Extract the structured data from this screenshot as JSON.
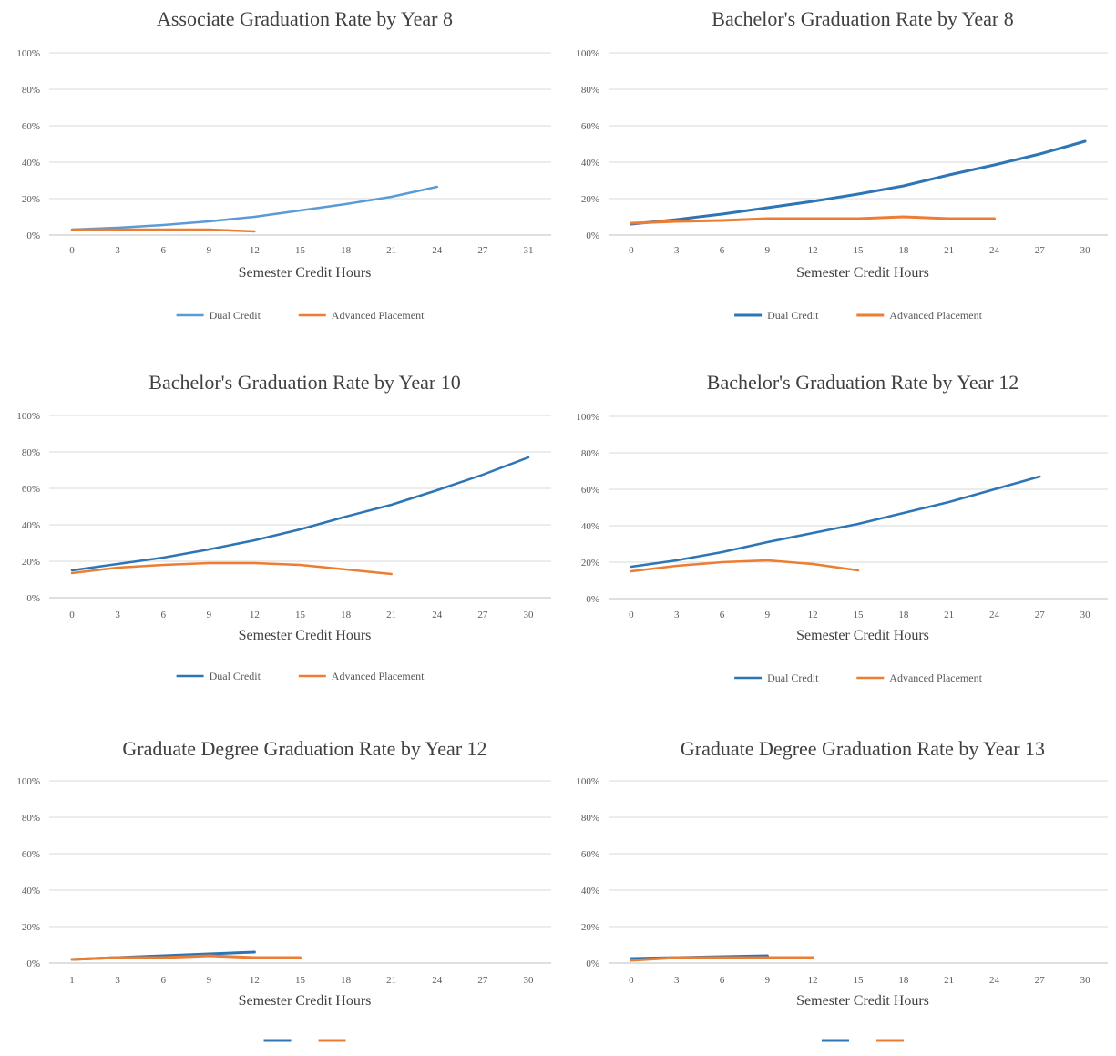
{
  "chart_data": [
    {
      "type": "line",
      "title": "Associate Graduation Rate by Year 8",
      "xlabel": "Semester Credit Hours",
      "ylabel": "",
      "x_ticks": [
        "0",
        "3",
        "6",
        "9",
        "12",
        "15",
        "18",
        "21",
        "24",
        "27",
        "31"
      ],
      "y_ticks": [
        "0%",
        "20%",
        "40%",
        "60%",
        "80%",
        "100%"
      ],
      "ylim": [
        0,
        100
      ],
      "legend": "bottom",
      "grid": true,
      "series": [
        {
          "name": "Dual Credit",
          "color": "#5b9bd5",
          "width": 2.5,
          "x": [
            0,
            3,
            6,
            9,
            12,
            15,
            18,
            21,
            24
          ],
          "y": [
            3,
            4,
            5.5,
            7.5,
            10,
            13.5,
            17,
            21,
            26.5
          ]
        },
        {
          "name": "Advanced Placement",
          "color": "#ed7d31",
          "width": 2.5,
          "x": [
            0,
            3,
            6,
            9,
            12
          ],
          "y": [
            3,
            3,
            3,
            3,
            2
          ]
        }
      ]
    },
    {
      "type": "line",
      "title": "Bachelor's Graduation Rate by Year 8",
      "xlabel": "Semester Credit Hours",
      "ylabel": "",
      "x_ticks": [
        "0",
        "3",
        "6",
        "9",
        "12",
        "15",
        "18",
        "21",
        "24",
        "27",
        "30"
      ],
      "y_ticks": [
        "0%",
        "20%",
        "40%",
        "60%",
        "80%",
        "100%"
      ],
      "ylim": [
        0,
        100
      ],
      "legend": "bottom",
      "grid": true,
      "series": [
        {
          "name": "Dual Credit",
          "color": "#2e75b6",
          "width": 3,
          "x": [
            0,
            3,
            6,
            9,
            12,
            15,
            18,
            21,
            24,
            27,
            30
          ],
          "y": [
            6,
            8.5,
            11.5,
            15,
            18.5,
            22.5,
            27,
            33,
            38.5,
            44.5,
            51.5
          ]
        },
        {
          "name": "Advanced Placement",
          "color": "#ed7d31",
          "width": 3,
          "x": [
            0,
            3,
            6,
            9,
            12,
            15,
            18,
            21,
            24
          ],
          "y": [
            6.5,
            7.5,
            8,
            9,
            9,
            9,
            10,
            9,
            9
          ]
        }
      ]
    },
    {
      "type": "line",
      "title": "Bachelor's Graduation Rate by Year 10",
      "xlabel": "Semester Credit Hours",
      "ylabel": "",
      "x_ticks": [
        "0",
        "3",
        "6",
        "9",
        "12",
        "15",
        "18",
        "21",
        "24",
        "27",
        "30"
      ],
      "y_ticks": [
        "0%",
        "20%",
        "40%",
        "60%",
        "80%",
        "100%"
      ],
      "ylim": [
        0,
        100
      ],
      "legend": "bottom",
      "grid": true,
      "series": [
        {
          "name": "Dual Credit",
          "color": "#2e75b6",
          "width": 2.5,
          "x": [
            0,
            3,
            6,
            9,
            12,
            15,
            18,
            21,
            24,
            27,
            30
          ],
          "y": [
            15,
            18.5,
            22,
            26.5,
            31.5,
            37.5,
            44.5,
            51,
            59,
            67.5,
            77
          ]
        },
        {
          "name": "Advanced Placement",
          "color": "#ed7d31",
          "width": 2.5,
          "x": [
            0,
            3,
            6,
            9,
            12,
            15,
            18,
            21
          ],
          "y": [
            13.5,
            16.5,
            18,
            19,
            19,
            18,
            15.5,
            13
          ]
        }
      ]
    },
    {
      "type": "line",
      "title": "Bachelor's Graduation Rate by Year 12",
      "xlabel": "Semester Credit Hours",
      "ylabel": "",
      "x_ticks": [
        "0",
        "3",
        "6",
        "9",
        "12",
        "15",
        "18",
        "21",
        "24",
        "27",
        "30"
      ],
      "y_ticks": [
        "0%",
        "20%",
        "40%",
        "60%",
        "80%",
        "100%"
      ],
      "ylim": [
        0,
        100
      ],
      "legend": "bottom",
      "grid": true,
      "series": [
        {
          "name": "Dual Credit",
          "color": "#2e75b6",
          "width": 2.5,
          "x": [
            0,
            3,
            6,
            9,
            12,
            15,
            18,
            21,
            24,
            27
          ],
          "y": [
            17.5,
            21,
            25.5,
            31,
            36,
            41,
            47,
            53,
            60,
            67
          ]
        },
        {
          "name": "Advanced Placement",
          "color": "#ed7d31",
          "width": 2.5,
          "x": [
            0,
            3,
            6,
            9,
            12,
            15
          ],
          "y": [
            15,
            18,
            20,
            21,
            19,
            15.5
          ]
        }
      ]
    },
    {
      "type": "line",
      "title": "Graduate Degree Graduation Rate by Year 12",
      "xlabel": "Semester Credit Hours",
      "ylabel": "",
      "x_ticks": [
        "1",
        "3",
        "6",
        "9",
        "12",
        "15",
        "18",
        "21",
        "24",
        "27",
        "30"
      ],
      "y_ticks": [
        "0%",
        "20%",
        "40%",
        "60%",
        "80%",
        "100%"
      ],
      "ylim": [
        0,
        100
      ],
      "legend": "bottom",
      "grid": true,
      "series": [
        {
          "name": "",
          "color": "#2e75b6",
          "width": 3,
          "x": [
            0,
            3,
            6,
            9,
            12
          ],
          "y": [
            2,
            3,
            4,
            5,
            6
          ]
        },
        {
          "name": "",
          "color": "#ed7d31",
          "width": 3,
          "x": [
            0,
            3,
            6,
            9,
            12,
            15
          ],
          "y": [
            2,
            3,
            3,
            4,
            3,
            3
          ]
        }
      ]
    },
    {
      "type": "line",
      "title": "Graduate Degree Graduation Rate by Year 13",
      "xlabel": "Semester Credit Hours",
      "ylabel": "",
      "x_ticks": [
        "0",
        "3",
        "6",
        "9",
        "12",
        "15",
        "18",
        "21",
        "24",
        "27",
        "30"
      ],
      "y_ticks": [
        "0%",
        "20%",
        "40%",
        "60%",
        "80%",
        "100%"
      ],
      "ylim": [
        0,
        100
      ],
      "legend": "bottom",
      "grid": true,
      "series": [
        {
          "name": "",
          "color": "#2e75b6",
          "width": 3,
          "x": [
            0,
            3,
            6,
            9
          ],
          "y": [
            2.5,
            3,
            3.5,
            4
          ]
        },
        {
          "name": "",
          "color": "#ed7d31",
          "width": 3,
          "x": [
            0,
            3,
            6,
            9,
            12
          ],
          "y": [
            1.5,
            3,
            3,
            3,
            3
          ]
        }
      ]
    }
  ]
}
